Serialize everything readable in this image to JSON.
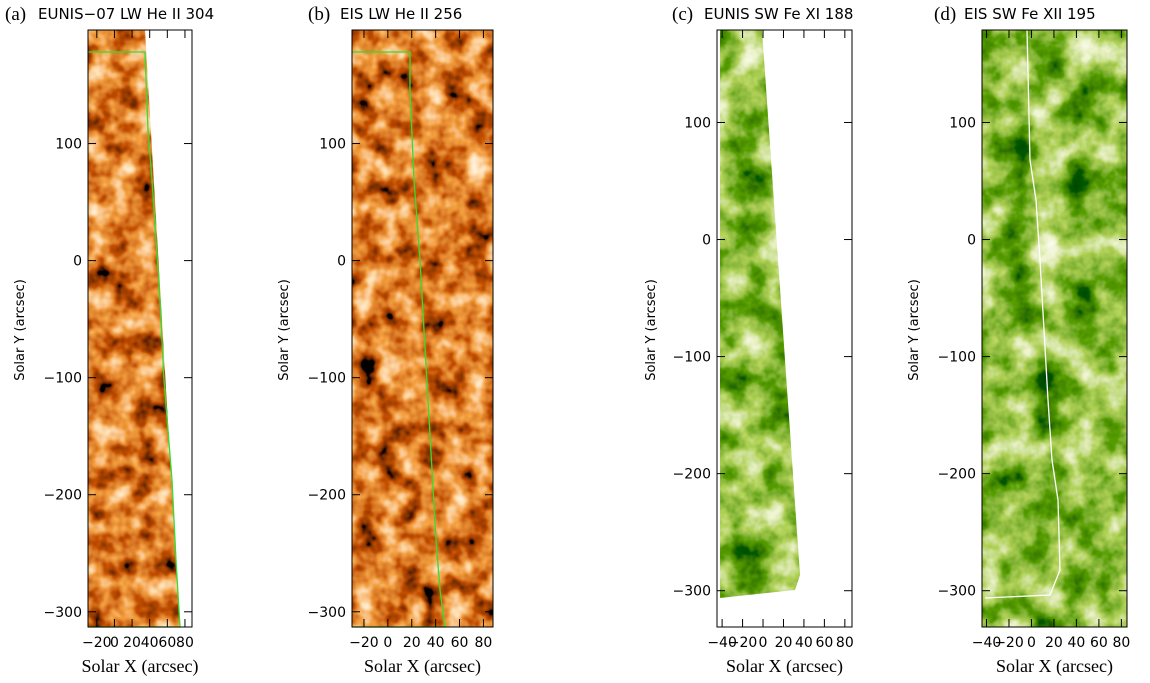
{
  "chart_data": [
    {
      "type": "image",
      "label": "(a)",
      "title": "EUNIS−07 LW He II 304",
      "xlabel": "Solar X  (arcsec)",
      "ylabel": "Solar Y (arcsec)",
      "colormap": "heat",
      "xlim": [
        -30,
        88
      ],
      "ylim": [
        -313,
        197
      ],
      "xticks": [
        {
          "value": -20,
          "label": "−20"
        },
        0,
        20,
        40,
        60,
        80
      ],
      "yticks": [
        {
          "value": -300,
          "label": "−300"
        },
        {
          "value": -200,
          "label": "−200"
        },
        {
          "value": -100,
          "label": "−100"
        },
        0,
        100
      ]
    },
    {
      "type": "image",
      "label": "(b)",
      "title": "EIS LW He II 256",
      "xlabel": "Solar X  (arcsec)",
      "ylabel": "Solar Y (arcsec)",
      "colormap": "heat",
      "xlim": [
        -30,
        88
      ],
      "ylim": [
        -313,
        197
      ],
      "xticks": [
        {
          "value": -20,
          "label": "−20"
        },
        0,
        20,
        40,
        60,
        80
      ],
      "yticks": [
        {
          "value": -300,
          "label": "−300"
        },
        {
          "value": -200,
          "label": "−200"
        },
        {
          "value": -100,
          "label": "−100"
        },
        0,
        100
      ]
    },
    {
      "type": "image",
      "label": "(c)",
      "title": "EUNIS SW Fe XI 188",
      "xlabel": "Solar X  (arcsec)",
      "ylabel": "Solar Y (arcsec)",
      "colormap": "green",
      "xlim": [
        -45,
        87
      ],
      "ylim": [
        -331,
        179
      ],
      "xticks": [
        {
          "value": -40,
          "label": "−40"
        },
        {
          "value": -20,
          "label": "−20"
        },
        0,
        20,
        40,
        60,
        80
      ],
      "yticks": [
        {
          "value": -300,
          "label": "−300"
        },
        {
          "value": -200,
          "label": "−200"
        },
        {
          "value": -100,
          "label": "−100"
        },
        0,
        100
      ]
    },
    {
      "type": "image",
      "label": "(d)",
      "title": "EIS SW Fe XII 195",
      "xlabel": "Solar X  (arcsec)",
      "ylabel": "Solar Y (arcsec)",
      "colormap": "green",
      "xlim": [
        -44,
        85
      ],
      "ylim": [
        -331,
        179
      ],
      "xticks": [
        {
          "value": -40,
          "label": "−40"
        },
        {
          "value": -20,
          "label": "−20"
        },
        0,
        20,
        40,
        60,
        80
      ],
      "yticks": [
        {
          "value": -300,
          "label": "−300"
        },
        {
          "value": -200,
          "label": "−200"
        },
        {
          "value": -100,
          "label": "−100"
        },
        0,
        100
      ]
    }
  ]
}
